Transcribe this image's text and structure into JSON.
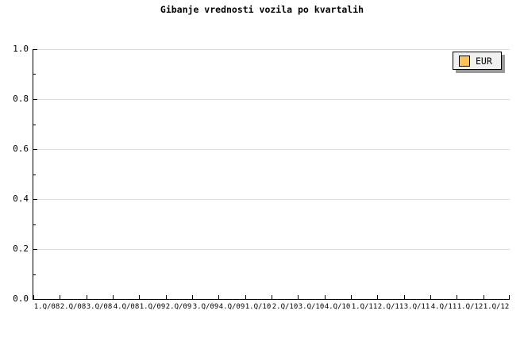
{
  "colors": {
    "background": "#FFFFFF",
    "axis": "#000000",
    "text": "#000000",
    "gridline": "#DDDDDD",
    "legend_bg": "#F0F0F0",
    "legend_border": "#000000",
    "legend_shadow": "#999999",
    "series_eur": "#FCC35C"
  },
  "chart_data": {
    "type": "line",
    "title": "Gibanje vrednosti vozila po kvartalih",
    "categories": [
      "1.Q/08",
      "2.Q/08",
      "3.Q/08",
      "4.Q/08",
      "1.Q/09",
      "2.Q/09",
      "3.Q/09",
      "4.Q/09",
      "1.Q/10",
      "2.Q/10",
      "3.Q/10",
      "4.Q/10",
      "1.Q/11",
      "2.Q/11",
      "3.Q/11",
      "4.Q/11",
      "1.Q/12",
      "1.Q/12"
    ],
    "series": [
      {
        "name": "EUR",
        "color": "#FCC35C",
        "values": []
      }
    ],
    "ylim": [
      0.0,
      1.0
    ],
    "y_major_ticks": [
      "0.0",
      "0.2",
      "0.4",
      "0.6",
      "0.8",
      "1.0"
    ],
    "y_minor_tick_step": 0.1,
    "grid": "horizontal-major",
    "legend_position": "top-right"
  }
}
